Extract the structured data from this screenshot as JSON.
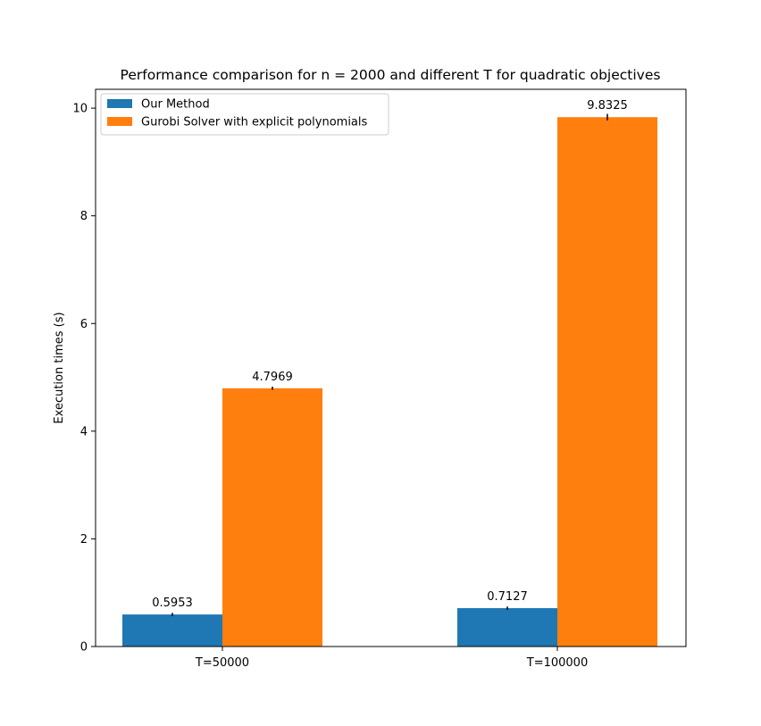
{
  "chart_data": {
    "type": "bar",
    "title": "Performance comparison for n = 2000 and different T for quadratic objectives",
    "xlabel": "",
    "ylabel": "Execution times (s)",
    "categories": [
      "T=50000",
      "T=100000"
    ],
    "series": [
      {
        "name": "Our Method",
        "color": "#1f77b4",
        "values": [
          0.5953,
          0.7127
        ],
        "labels": [
          "0.5953",
          "0.7127"
        ],
        "error": [
          0.03,
          0.03
        ]
      },
      {
        "name": "Gurobi Solver with explicit polynomials",
        "color": "#ff7f0e",
        "values": [
          4.7969,
          9.8325
        ],
        "labels": [
          "4.7969",
          "9.8325"
        ],
        "error": [
          0.03,
          0.06
        ]
      }
    ],
    "ylim": [
      0,
      10.35
    ],
    "yticks": [
      0,
      2,
      4,
      6,
      8,
      10
    ],
    "ytick_labels": [
      "0",
      "2",
      "4",
      "6",
      "8",
      "10"
    ],
    "grid": false,
    "legend_position": "upper-left"
  }
}
